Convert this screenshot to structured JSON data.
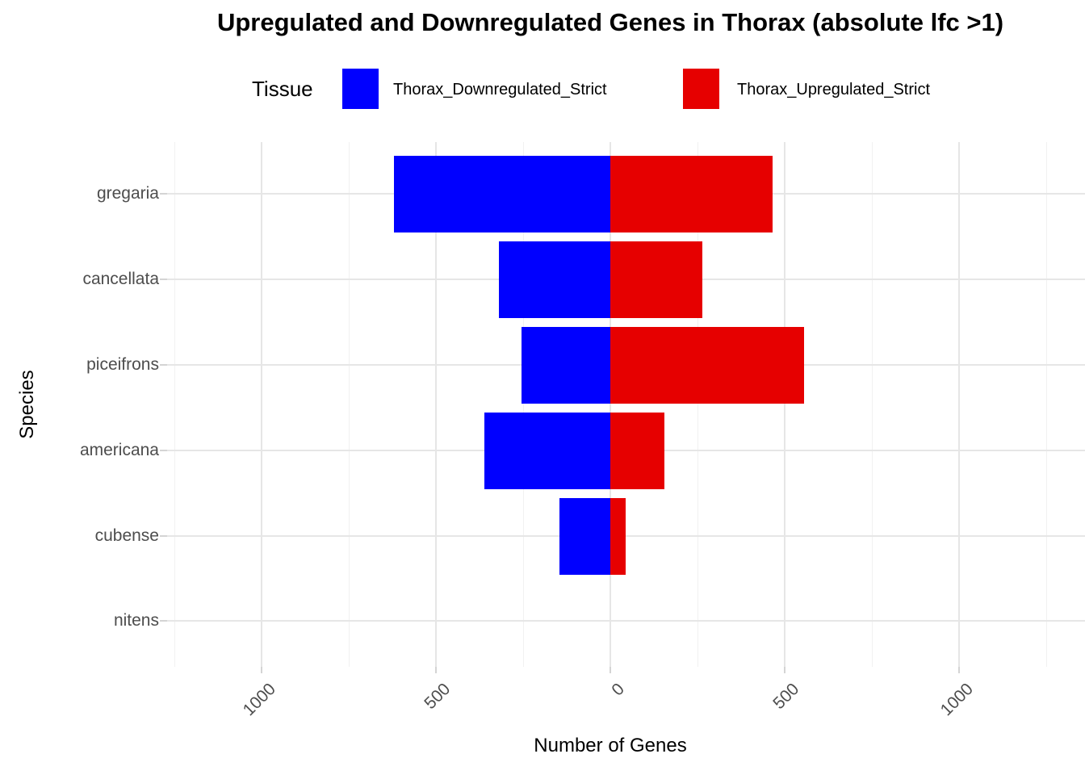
{
  "chart_data": {
    "type": "bar",
    "variant": "horizontal-diverging",
    "title": "Upregulated and Downregulated Genes in Thorax (absolute lfc >1)",
    "xlabel": "Number of Genes",
    "ylabel": "Species",
    "legend_title": "Tissue",
    "legend_position": "top",
    "grid": "major+minor",
    "xlim": [
      -1270,
      1360
    ],
    "categories": [
      "gregaria",
      "cancellata",
      "piceifrons",
      "americana",
      "cubense",
      "nitens"
    ],
    "series": [
      {
        "name": "Thorax_Downregulated_Strict",
        "color": "#0000ff",
        "direction": "left",
        "values": [
          620,
          320,
          255,
          360,
          145,
          0
        ]
      },
      {
        "name": "Thorax_Upregulated_Strict",
        "color": "#e60000",
        "direction": "right",
        "values": [
          465,
          265,
          555,
          155,
          45,
          0
        ]
      }
    ],
    "x_ticks": [
      {
        "value": -1000,
        "label": "1000"
      },
      {
        "value": -500,
        "label": "500"
      },
      {
        "value": 0,
        "label": "0"
      },
      {
        "value": 500,
        "label": "500"
      },
      {
        "value": 1000,
        "label": "1000"
      }
    ],
    "x_minor_ticks": [
      -1250,
      -750,
      -250,
      250,
      750,
      1250
    ]
  }
}
